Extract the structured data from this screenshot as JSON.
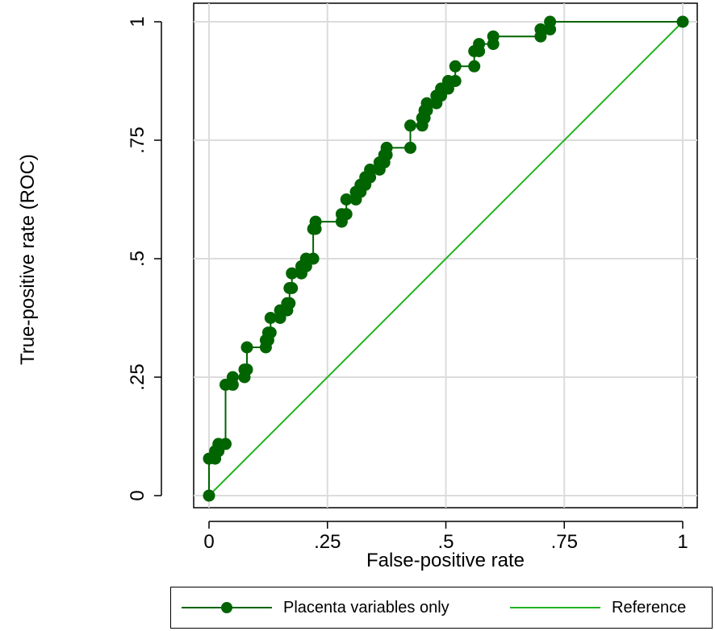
{
  "chart_data": {
    "type": "line",
    "xlabel": "False-positive rate",
    "ylabel": "True-positive rate (ROC)",
    "xlim": [
      0,
      1
    ],
    "ylim": [
      0,
      1
    ],
    "x_ticks": [
      "0",
      ".25",
      ".5",
      ".75",
      "1"
    ],
    "y_ticks": [
      "0",
      ".25",
      ".5",
      ".75",
      "1"
    ],
    "tick_values": [
      0,
      0.25,
      0.5,
      0.75,
      1
    ],
    "grid": true,
    "legend_position": "bottom",
    "series": [
      {
        "name": "Placenta variables only",
        "color": "#006400",
        "markers": true,
        "points": [
          [
            0,
            0
          ],
          [
            0,
            0.078
          ],
          [
            0.013,
            0.078
          ],
          [
            0.013,
            0.094
          ],
          [
            0.02,
            0.094
          ],
          [
            0.02,
            0.109
          ],
          [
            0.035,
            0.109
          ],
          [
            0.035,
            0.234
          ],
          [
            0.05,
            0.234
          ],
          [
            0.05,
            0.25
          ],
          [
            0.075,
            0.25
          ],
          [
            0.075,
            0.266
          ],
          [
            0.08,
            0.266
          ],
          [
            0.08,
            0.313
          ],
          [
            0.12,
            0.313
          ],
          [
            0.12,
            0.328
          ],
          [
            0.125,
            0.328
          ],
          [
            0.125,
            0.344
          ],
          [
            0.13,
            0.344
          ],
          [
            0.13,
            0.375
          ],
          [
            0.15,
            0.375
          ],
          [
            0.15,
            0.391
          ],
          [
            0.165,
            0.391
          ],
          [
            0.165,
            0.406
          ],
          [
            0.17,
            0.406
          ],
          [
            0.17,
            0.438
          ],
          [
            0.175,
            0.438
          ],
          [
            0.175,
            0.469
          ],
          [
            0.195,
            0.469
          ],
          [
            0.195,
            0.484
          ],
          [
            0.205,
            0.484
          ],
          [
            0.205,
            0.5
          ],
          [
            0.22,
            0.5
          ],
          [
            0.22,
            0.563
          ],
          [
            0.225,
            0.563
          ],
          [
            0.225,
            0.578
          ],
          [
            0.28,
            0.578
          ],
          [
            0.28,
            0.594
          ],
          [
            0.29,
            0.594
          ],
          [
            0.29,
            0.625
          ],
          [
            0.31,
            0.625
          ],
          [
            0.31,
            0.641
          ],
          [
            0.32,
            0.641
          ],
          [
            0.32,
            0.656
          ],
          [
            0.33,
            0.656
          ],
          [
            0.33,
            0.672
          ],
          [
            0.34,
            0.672
          ],
          [
            0.34,
            0.688
          ],
          [
            0.36,
            0.688
          ],
          [
            0.36,
            0.703
          ],
          [
            0.37,
            0.703
          ],
          [
            0.37,
            0.719
          ],
          [
            0.375,
            0.719
          ],
          [
            0.375,
            0.734
          ],
          [
            0.425,
            0.734
          ],
          [
            0.425,
            0.781
          ],
          [
            0.45,
            0.781
          ],
          [
            0.45,
            0.797
          ],
          [
            0.455,
            0.797
          ],
          [
            0.455,
            0.813
          ],
          [
            0.46,
            0.813
          ],
          [
            0.46,
            0.828
          ],
          [
            0.48,
            0.828
          ],
          [
            0.48,
            0.844
          ],
          [
            0.49,
            0.844
          ],
          [
            0.49,
            0.859
          ],
          [
            0.505,
            0.859
          ],
          [
            0.505,
            0.875
          ],
          [
            0.52,
            0.875
          ],
          [
            0.52,
            0.906
          ],
          [
            0.56,
            0.906
          ],
          [
            0.56,
            0.938
          ],
          [
            0.57,
            0.938
          ],
          [
            0.57,
            0.953
          ],
          [
            0.6,
            0.953
          ],
          [
            0.6,
            0.969
          ],
          [
            0.7,
            0.969
          ],
          [
            0.7,
            0.984
          ],
          [
            0.72,
            0.984
          ],
          [
            0.72,
            1
          ],
          [
            1,
            1
          ]
        ]
      },
      {
        "name": "Reference",
        "color": "#22b222",
        "markers": false,
        "points": [
          [
            0,
            0
          ],
          [
            1,
            1
          ]
        ]
      }
    ]
  }
}
